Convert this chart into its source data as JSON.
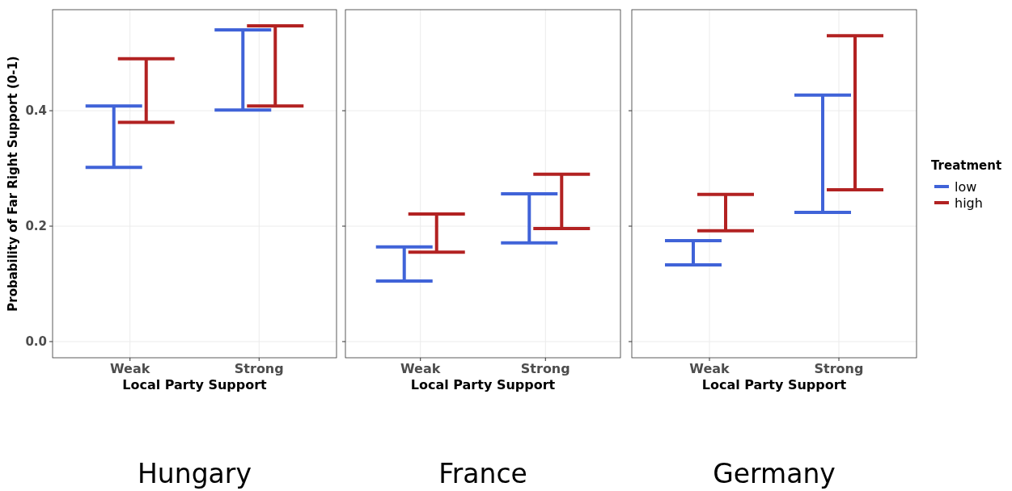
{
  "chart_data": [
    {
      "type": "bar",
      "title": "Hungary",
      "xlabel": "Local Party Support",
      "ylabel": "Probability of Far Right Support (0-1)",
      "categories": [
        "Weak",
        "Strong"
      ],
      "ylim": [
        -0.028,
        0.575
      ],
      "yticks": [
        {
          "value": 0,
          "label": "0.0"
        },
        0.2,
        0.4
      ],
      "grid": true,
      "legend": false,
      "series": [
        {
          "color": "#4063d8",
          "base": [
            0.302,
            0.401
          ],
          "values": [
            0.106,
            0.139
          ]
        },
        {
          "color": "#b22222",
          "base": [
            0.38,
            0.408
          ],
          "values": [
            0.11,
            0.139
          ]
        }
      ]
    },
    {
      "type": "bar",
      "title": "France",
      "xlabel": "Local Party Support",
      "categories": [
        "Weak",
        "Strong"
      ],
      "ylim": [
        -0.028,
        0.575
      ],
      "yticks": [
        0,
        0.2,
        0.4
      ],
      "grid": true,
      "legend": false,
      "tick_labels": "x",
      "series": [
        {
          "color": "#4063d8",
          "base": [
            0.105,
            0.171
          ],
          "values": [
            0.059,
            0.085
          ]
        },
        {
          "color": "#b22222",
          "base": [
            0.155,
            0.196
          ],
          "values": [
            0.066,
            0.094
          ]
        }
      ]
    },
    {
      "type": "bar",
      "title": "Germany",
      "xlabel": "Local Party Support",
      "categories": [
        "Weak",
        "Strong"
      ],
      "ylim": [
        -0.028,
        0.575
      ],
      "yticks": [
        0,
        0.2,
        0.4
      ],
      "grid": true,
      "legend": "right",
      "legend_title": "Treatment",
      "tick_labels": "x",
      "series": [
        {
          "name": "low",
          "color": "#4063d8",
          "base": [
            0.133,
            0.224
          ],
          "values": [
            0.042,
            0.203
          ]
        },
        {
          "name": "high",
          "color": "#b22222",
          "base": [
            0.192,
            0.263
          ],
          "values": [
            0.063,
            0.267
          ]
        }
      ]
    }
  ]
}
